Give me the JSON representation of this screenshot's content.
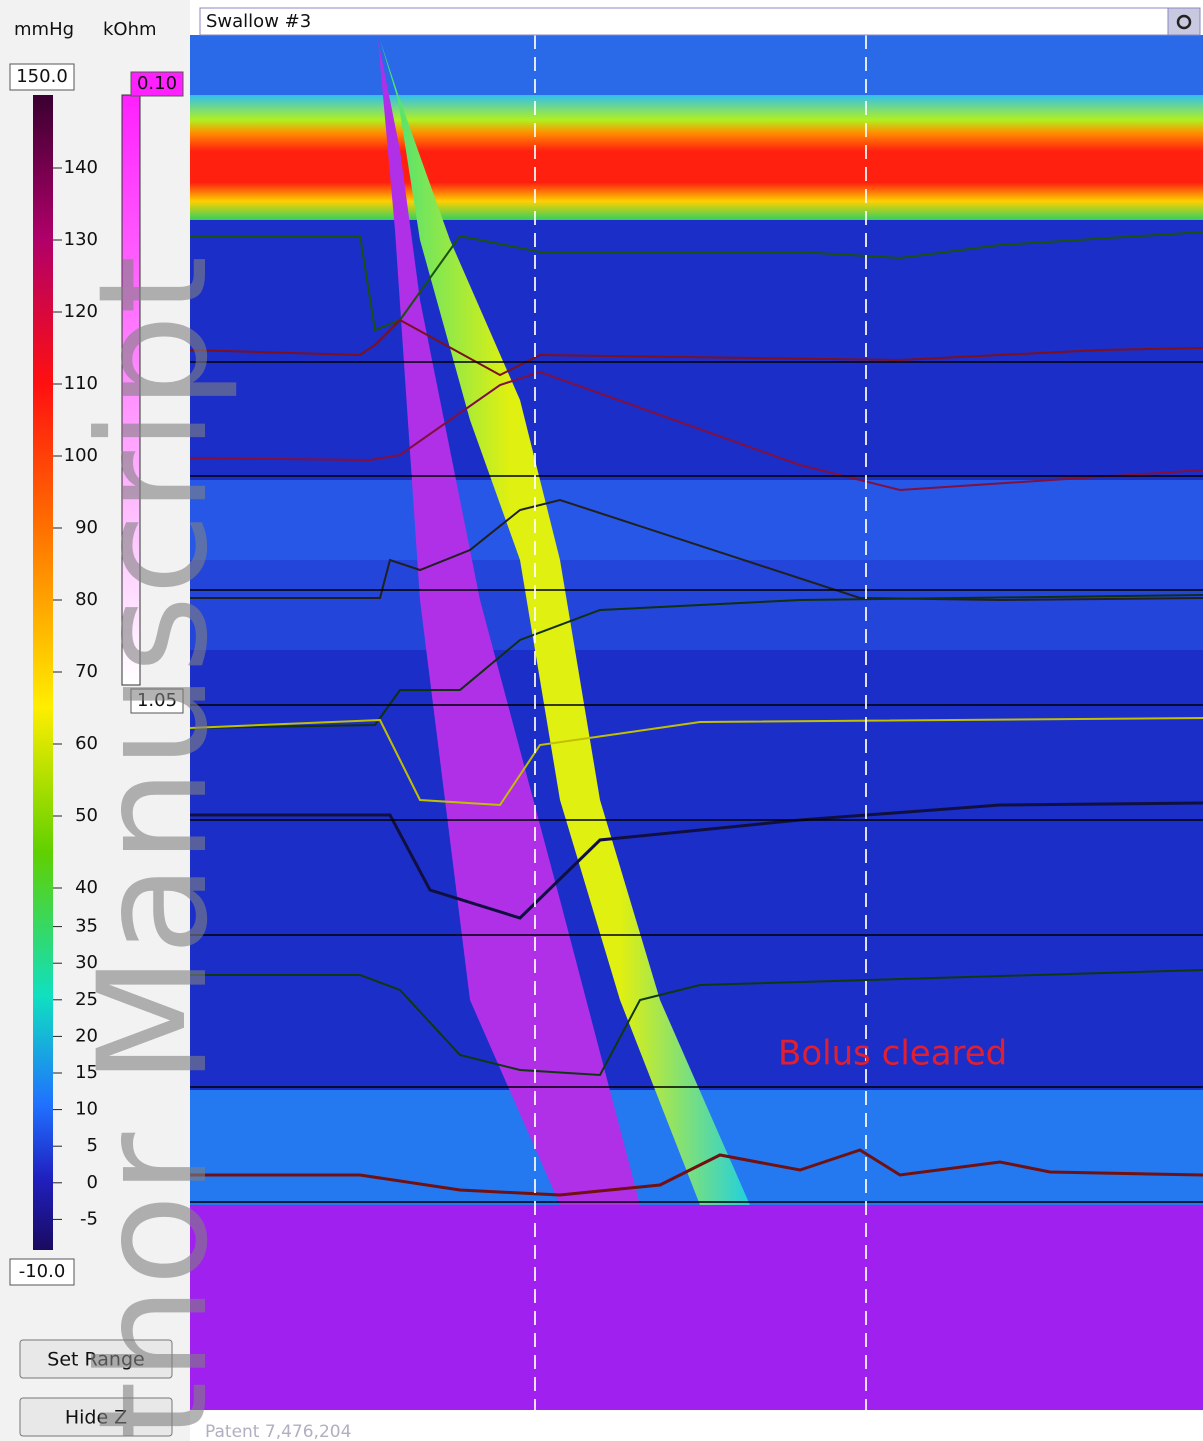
{
  "header": {
    "pressure_unit": "mmHg",
    "impedance_unit": "kOhm"
  },
  "pressure_scale": {
    "max_label": "150.0",
    "min_label": "-10.0",
    "ticks": [
      140,
      130,
      120,
      110,
      100,
      90,
      80,
      70,
      60,
      50,
      40,
      35,
      30,
      25,
      20,
      15,
      10,
      5,
      0,
      -5
    ]
  },
  "impedance_scale": {
    "top_label": "0.10",
    "bottom_label": "1.05"
  },
  "plot": {
    "title": "Swallow #3",
    "annotation": "Bolus cleared",
    "footer": "Patent 7,476,204"
  },
  "buttons": [
    "Set Range",
    "Hide Z"
  ],
  "watermark": "thor Manuscript"
}
